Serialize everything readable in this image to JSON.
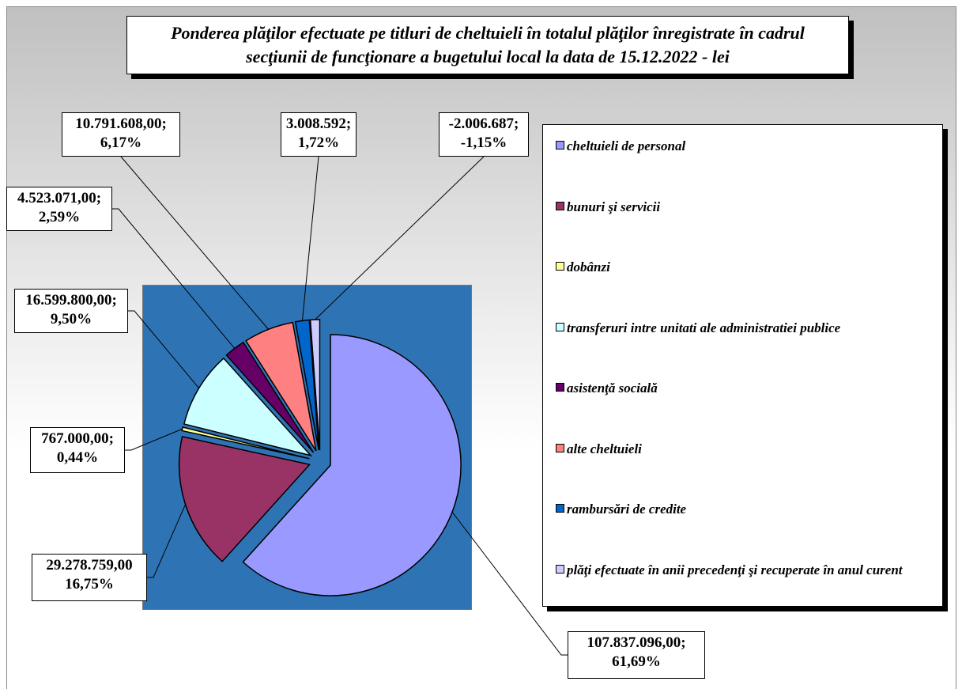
{
  "chart_data": {
    "type": "pie",
    "title": "Ponderea plăţilor efectuate pe titluri de cheltuieli în totalul plăţilor înregistrate în cadrul secţiunii de funcţionare a bugetului local la data de 15.12.2022 - lei",
    "categories": [
      "cheltuieli de personal",
      "bunuri şi servicii",
      "dobânzi",
      "transferuri intre unitati ale administratiei publice",
      "asistenţă socială",
      "alte cheltuieli",
      "rambursări de credite",
      "plăţi efectuate în anii precedenţi şi recuperate în anul curent"
    ],
    "values": [
      107837096.0,
      29278759.0,
      767000.0,
      16599800.0,
      4523071.0,
      10791608.0,
      3008592,
      -2006687
    ],
    "value_labels": [
      "107.837.096,00;",
      "29.278.759,00",
      "767.000,00;",
      "16.599.800,00;",
      "4.523.071,00;",
      "10.791.608,00;",
      "3.008.592;",
      "-2.006.687;"
    ],
    "percents": [
      61.69,
      16.75,
      0.44,
      9.5,
      2.59,
      6.17,
      1.72,
      -1.15
    ],
    "percent_labels": [
      "61,69%",
      "16,75%",
      "0,44%",
      "9,50%",
      "2,59%",
      "6,17%",
      "1,72%",
      "-1,15%"
    ],
    "colors": [
      "#9999ff",
      "#993366",
      "#ffff99",
      "#ccffff",
      "#660066",
      "#ff8080",
      "#0066cc",
      "#ccccff"
    ],
    "legend": "right"
  }
}
